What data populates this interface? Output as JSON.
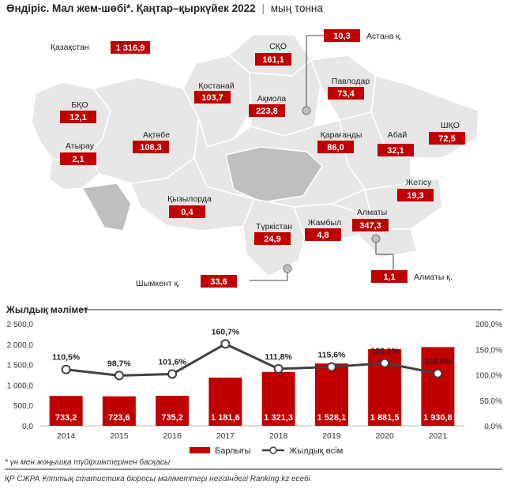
{
  "header": {
    "title": "Өндіріс. Мал жем-шөбі*. Қаңтар–қыркүйек 2022",
    "separator": "|",
    "unit": "мың тонна"
  },
  "map": {
    "total": {
      "label": "Қазақстан",
      "value": "1 316,9"
    },
    "regions": [
      {
        "key": "sko",
        "label": "СҚО",
        "value": "161,1"
      },
      {
        "key": "astana",
        "label": "Астана қ.",
        "value": "10,3"
      },
      {
        "key": "pavlodar",
        "label": "Павлодар",
        "value": "73,4"
      },
      {
        "key": "kostanay",
        "label": "Қостанай",
        "value": "103,7"
      },
      {
        "key": "akmola",
        "label": "Ақмола",
        "value": "223,8"
      },
      {
        "key": "bko",
        "label": "БҚО",
        "value": "12,1"
      },
      {
        "key": "aktobe",
        "label": "Ақтөбе",
        "value": "108,3"
      },
      {
        "key": "karaganda",
        "label": "Қарағанды",
        "value": "86,0"
      },
      {
        "key": "abay",
        "label": "Абай",
        "value": "32,1"
      },
      {
        "key": "vko",
        "label": "ШҚО",
        "value": "72,5"
      },
      {
        "key": "atyrau",
        "label": "Атырау",
        "value": "2,1"
      },
      {
        "key": "zhetisu",
        "label": "Жетісу",
        "value": "19,3"
      },
      {
        "key": "kyzylorda",
        "label": "Қызылорда",
        "value": "0,4"
      },
      {
        "key": "almaty",
        "label": "Алматы",
        "value": "347,3"
      },
      {
        "key": "turkistan",
        "label": "Түркістан",
        "value": "24,9"
      },
      {
        "key": "zhambyl",
        "label": "Жамбыл",
        "value": "4,8"
      },
      {
        "key": "shymkent",
        "label": "Шымкент қ.",
        "value": "33,6"
      },
      {
        "key": "almaty_c",
        "label": "Алматы қ.",
        "value": "1,1"
      }
    ]
  },
  "annual": {
    "section_title": "Жылдық мәлімет"
  },
  "chart_data": {
    "type": "bar",
    "categories": [
      "2014",
      "2015",
      "2016",
      "2017",
      "2018",
      "2019",
      "2020",
      "2021"
    ],
    "series": [
      {
        "name": "Барлығы",
        "kind": "bar",
        "axis": "left",
        "values": [
          733.2,
          723.6,
          735.2,
          1181.6,
          1321.3,
          1528.1,
          1881.5,
          1930.8
        ],
        "labels": [
          "733,2",
          "723,6",
          "735,2",
          "1 181,6",
          "1 321,3",
          "1 528,1",
          "1 881,5",
          "1 930,8"
        ],
        "color": "#c00000"
      },
      {
        "name": "Жылдық өсім",
        "kind": "line",
        "axis": "right",
        "values": [
          110.5,
          98.7,
          101.6,
          160.7,
          111.8,
          115.6,
          123.1,
          102.6
        ],
        "labels": [
          "110,5%",
          "98,7%",
          "101,6%",
          "160,7%",
          "111,8%",
          "115,6%",
          "123,1%",
          "102,6%"
        ],
        "color": "#404040"
      }
    ],
    "y_left": {
      "min": 0,
      "max": 2500,
      "ticks": [
        "0,0",
        "500,0",
        "1 000,0",
        "1 500,0",
        "2 000,0",
        "2 500,0"
      ]
    },
    "y_right": {
      "min": 0,
      "max": 200,
      "ticks": [
        "0,0%",
        "50,0%",
        "100,0%",
        "150,0%",
        "200,0%"
      ]
    },
    "grid": false,
    "legend_position": "bottom"
  },
  "notes": {
    "footnote": "* үн мен жоңышқа түйіршіктерінен басқасы",
    "source": "ҚР СЖРА Ұлттық статистика бюросы мәліметтері негізіндегі Ranking.kz есебі"
  },
  "colors": {
    "accent": "#c00000",
    "map_fill": "#e6e6e6",
    "map_dark": "#bfbfbf",
    "line": "#404040"
  }
}
